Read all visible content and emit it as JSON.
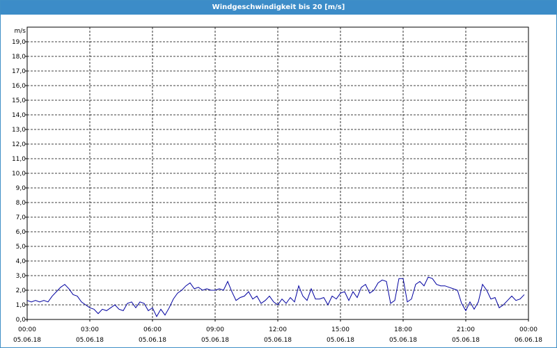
{
  "window": {
    "title": "Windgeschwindigkeit bis 20 [m/s]"
  },
  "chart_data": {
    "type": "line",
    "title": "Windgeschwindigkeit bis 20 [m/s]",
    "ylabel": "m/s",
    "xlabel": "",
    "ylim": [
      0,
      20
    ],
    "xlim_hours": [
      0,
      24
    ],
    "grid": true,
    "y_ticks": [
      "0,0",
      "1,0",
      "2,0",
      "3,0",
      "4,0",
      "5,0",
      "6,0",
      "7,0",
      "8,0",
      "9,0",
      "10,0",
      "11,0",
      "12,0",
      "13,0",
      "14,0",
      "15,0",
      "16,0",
      "17,0",
      "18,0",
      "19,0"
    ],
    "x_ticks": [
      {
        "time": "00:00",
        "date": "05.06.18"
      },
      {
        "time": "03:00",
        "date": "05.06.18"
      },
      {
        "time": "06:00",
        "date": "05.06.18"
      },
      {
        "time": "09:00",
        "date": "05.06.18"
      },
      {
        "time": "12:00",
        "date": "05.06.18"
      },
      {
        "time": "15:00",
        "date": "05.06.18"
      },
      {
        "time": "18:00",
        "date": "05.06.18"
      },
      {
        "time": "21:00",
        "date": "05.06.18"
      },
      {
        "time": "00:00",
        "date": "06.06.18"
      }
    ],
    "series": [
      {
        "color": "#0000a0",
        "x_hours": [
          0,
          0.2,
          0.4,
          0.6,
          0.8,
          1.0,
          1.2,
          1.4,
          1.6,
          1.8,
          2.0,
          2.2,
          2.4,
          2.6,
          2.8,
          3.0,
          3.2,
          3.4,
          3.6,
          3.8,
          4.0,
          4.2,
          4.4,
          4.6,
          4.8,
          5.0,
          5.2,
          5.4,
          5.6,
          5.8,
          6.0,
          6.2,
          6.4,
          6.6,
          6.8,
          7.0,
          7.2,
          7.4,
          7.6,
          7.8,
          8.0,
          8.2,
          8.4,
          8.6,
          8.8,
          9.0,
          9.2,
          9.4,
          9.6,
          9.8,
          10.0,
          10.2,
          10.4,
          10.6,
          10.8,
          11.0,
          11.2,
          11.4,
          11.6,
          11.8,
          12.0,
          12.2,
          12.4,
          12.6,
          12.8,
          13.0,
          13.2,
          13.4,
          13.6,
          13.8,
          14.0,
          14.2,
          14.4,
          14.6,
          14.8,
          15.0,
          15.2,
          15.4,
          15.6,
          15.8,
          16.0,
          16.2,
          16.4,
          16.6,
          16.8,
          17.0,
          17.2,
          17.4,
          17.6,
          17.8,
          18.0,
          18.2,
          18.4,
          18.6,
          18.8,
          19.0,
          19.2,
          19.4,
          19.6,
          19.8,
          20.0,
          20.2,
          20.4,
          20.6,
          20.8,
          21.0,
          21.2,
          21.4,
          21.6,
          21.8,
          22.0,
          22.2,
          22.4,
          22.6,
          22.8,
          23.0,
          23.2,
          23.4,
          23.6,
          23.8
        ],
        "values": [
          1.3,
          1.2,
          1.3,
          1.2,
          1.3,
          1.2,
          1.6,
          1.9,
          2.2,
          2.4,
          2.1,
          1.7,
          1.6,
          1.2,
          1.0,
          0.8,
          0.7,
          0.4,
          0.7,
          0.6,
          0.8,
          1.0,
          0.7,
          0.6,
          1.1,
          1.2,
          0.8,
          1.2,
          1.1,
          0.6,
          0.8,
          0.2,
          0.7,
          0.3,
          0.8,
          1.4,
          1.8,
          2.0,
          2.3,
          2.5,
          2.1,
          2.2,
          2.0,
          2.1,
          2.0,
          2.0,
          2.1,
          2.0,
          2.6,
          1.9,
          1.3,
          1.5,
          1.6,
          1.9,
          1.4,
          1.6,
          1.1,
          1.3,
          1.6,
          1.2,
          1.0,
          1.4,
          1.1,
          1.5,
          1.2,
          2.3,
          1.6,
          1.3,
          2.1,
          1.4,
          1.4,
          1.5,
          1.0,
          1.6,
          1.4,
          1.8,
          1.9,
          1.3,
          1.9,
          1.5,
          2.2,
          2.4,
          1.8,
          2.0,
          2.5,
          2.7,
          2.6,
          1.1,
          1.3,
          2.8,
          2.8,
          1.2,
          1.4,
          2.4,
          2.6,
          2.3,
          2.9,
          2.8,
          2.4,
          2.3,
          2.3,
          2.2,
          2.1,
          2.0,
          1.1,
          0.6,
          1.2,
          0.7,
          1.2,
          2.4,
          2.0,
          1.4,
          1.5,
          0.8,
          1.0,
          1.3,
          1.6,
          1.3,
          1.4,
          1.7
        ]
      }
    ]
  }
}
